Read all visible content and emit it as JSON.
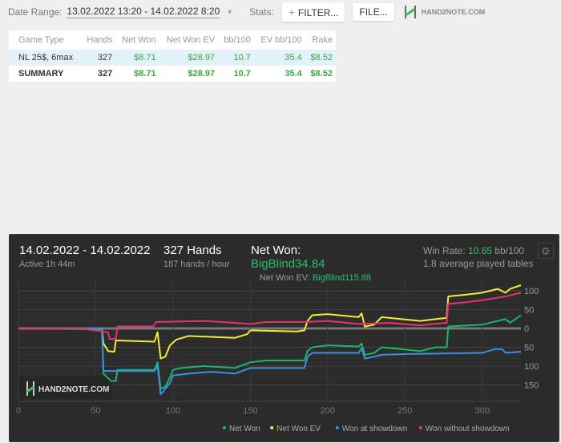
{
  "topbar": {
    "date_range_label": "Date Range:",
    "date_range_value": "13.02.2022 13:20 - 14.02.2022 8:20",
    "stats_label": "Stats:",
    "filter_button": "FILTER...",
    "file_button": "FILE...",
    "logo_text": "HAND2NOTE.COM"
  },
  "table": {
    "headers": [
      "Game Type",
      "Hands",
      "Net Won",
      "Net Won  EV",
      "bb/100",
      "EV bb/100",
      "Rake"
    ],
    "rows": [
      [
        "NL 25$, 6max",
        "327",
        "$8.71",
        "$28.97",
        "10.7",
        "35.4",
        "$8.52"
      ],
      [
        "SUMMARY",
        "327",
        "$8.71",
        "$28.97",
        "10.7",
        "35.4",
        "$8.52"
      ]
    ]
  },
  "summary": {
    "date_span": "14.02.2022 - 14.02.2022",
    "active": "Active 1h 44m",
    "hands": "327 Hands",
    "hands_per_hour": "187 hands / hour",
    "net_won_label": "Net Won:",
    "net_won_value": "BigBlind34.84",
    "net_won_ev_label": "Net Won  EV:",
    "net_won_ev_value": "BigBlind115.88",
    "win_rate_label": "Win Rate:",
    "win_rate_value": "10.65",
    "win_rate_unit": "bb/100",
    "tables": "1.8 average played tables"
  },
  "chart_data": {
    "type": "line",
    "xlim": [
      0,
      325
    ],
    "ylim": [
      -170,
      120
    ],
    "x_ticks": [
      0,
      50,
      100,
      150,
      200,
      250,
      300
    ],
    "x_tick_labels": [
      "0",
      "50",
      "100",
      "150",
      "200",
      "250",
      "300"
    ],
    "y_ticks": [
      100,
      50,
      0,
      -50,
      -100,
      -150
    ],
    "y_tick_labels": [
      "100",
      "50",
      "0",
      "50",
      "100",
      "150"
    ],
    "watermark": "HAND2NOTE.COM",
    "legend_position": "bottom",
    "series": [
      {
        "name": "Net Won",
        "color": "#1fb46a",
        "points": [
          [
            0,
            0
          ],
          [
            50,
            -2
          ],
          [
            54,
            -2
          ],
          [
            55,
            -120
          ],
          [
            60,
            -140
          ],
          [
            63,
            -140
          ],
          [
            64,
            -110
          ],
          [
            88,
            -110
          ],
          [
            90,
            -90
          ],
          [
            92,
            -160
          ],
          [
            95,
            -155
          ],
          [
            98,
            -130
          ],
          [
            100,
            -110
          ],
          [
            105,
            -105
          ],
          [
            120,
            -100
          ],
          [
            140,
            -105
          ],
          [
            150,
            -90
          ],
          [
            160,
            -85
          ],
          [
            185,
            -85
          ],
          [
            187,
            -60
          ],
          [
            190,
            -50
          ],
          [
            200,
            -45
          ],
          [
            220,
            -48
          ],
          [
            222,
            -40
          ],
          [
            224,
            -70
          ],
          [
            230,
            -65
          ],
          [
            235,
            -50
          ],
          [
            260,
            -60
          ],
          [
            270,
            -50
          ],
          [
            277,
            -50
          ],
          [
            278,
            5
          ],
          [
            300,
            10
          ],
          [
            305,
            15
          ],
          [
            315,
            25
          ],
          [
            318,
            15
          ],
          [
            325,
            35
          ]
        ]
      },
      {
        "name": "Net Won  EV",
        "color": "#f0ec3c",
        "points": [
          [
            0,
            0
          ],
          [
            54,
            0
          ],
          [
            55,
            -40
          ],
          [
            58,
            -60
          ],
          [
            62,
            -62
          ],
          [
            63,
            -32
          ],
          [
            88,
            -35
          ],
          [
            90,
            -10
          ],
          [
            92,
            -80
          ],
          [
            95,
            -75
          ],
          [
            98,
            -45
          ],
          [
            102,
            -30
          ],
          [
            110,
            -20
          ],
          [
            140,
            -25
          ],
          [
            148,
            -15
          ],
          [
            150,
            -5
          ],
          [
            180,
            -8
          ],
          [
            185,
            -5
          ],
          [
            187,
            20
          ],
          [
            190,
            35
          ],
          [
            200,
            38
          ],
          [
            220,
            30
          ],
          [
            222,
            40
          ],
          [
            224,
            5
          ],
          [
            230,
            10
          ],
          [
            235,
            30
          ],
          [
            260,
            20
          ],
          [
            270,
            25
          ],
          [
            277,
            28
          ],
          [
            278,
            85
          ],
          [
            290,
            90
          ],
          [
            300,
            95
          ],
          [
            310,
            105
          ],
          [
            315,
            95
          ],
          [
            318,
            105
          ],
          [
            325,
            115
          ]
        ]
      },
      {
        "name": "Won at showdown",
        "color": "#3a8fe0",
        "points": [
          [
            0,
            0
          ],
          [
            54,
            0
          ],
          [
            55,
            -113
          ],
          [
            88,
            -113
          ],
          [
            90,
            -100
          ],
          [
            92,
            -175
          ],
          [
            95,
            -160
          ],
          [
            98,
            -145
          ],
          [
            100,
            -125
          ],
          [
            110,
            -120
          ],
          [
            125,
            -115
          ],
          [
            140,
            -120
          ],
          [
            150,
            -105
          ],
          [
            185,
            -105
          ],
          [
            187,
            -75
          ],
          [
            190,
            -65
          ],
          [
            220,
            -65
          ],
          [
            222,
            -52
          ],
          [
            224,
            -80
          ],
          [
            230,
            -75
          ],
          [
            235,
            -70
          ],
          [
            250,
            -68
          ],
          [
            300,
            -65
          ],
          [
            308,
            -55
          ],
          [
            313,
            -55
          ],
          [
            315,
            -65
          ],
          [
            325,
            -62
          ]
        ]
      },
      {
        "name": "Won without showdown",
        "color": "#e8336b",
        "points": [
          [
            0,
            0
          ],
          [
            40,
            0
          ],
          [
            58,
            -10
          ],
          [
            59,
            -28
          ],
          [
            63,
            -28
          ],
          [
            64,
            5
          ],
          [
            87,
            5
          ],
          [
            89,
            17
          ],
          [
            120,
            20
          ],
          [
            140,
            15
          ],
          [
            150,
            12
          ],
          [
            160,
            17
          ],
          [
            185,
            17
          ],
          [
            200,
            20
          ],
          [
            220,
            12
          ],
          [
            240,
            15
          ],
          [
            260,
            8
          ],
          [
            268,
            12
          ],
          [
            277,
            15
          ],
          [
            278,
            65
          ],
          [
            290,
            70
          ],
          [
            300,
            75
          ],
          [
            315,
            85
          ],
          [
            318,
            88
          ],
          [
            325,
            95
          ]
        ]
      }
    ]
  }
}
